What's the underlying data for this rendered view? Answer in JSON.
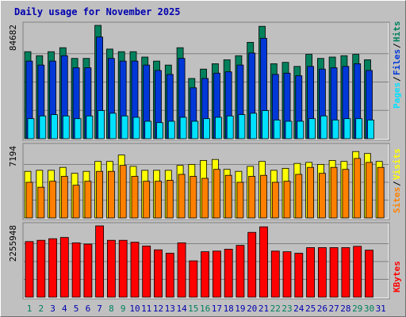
{
  "title": "Daily usage for November 2025",
  "colors": {
    "background": "#c0c0c0",
    "hits": "#00805c",
    "files": "#0038d8",
    "pages": "#00e0ff",
    "visits": "#ffff00",
    "sites": "#ff8000",
    "kbytes": "#ff0000",
    "weekend_label": "#00805c",
    "weekday_label": "#0000b0"
  },
  "chart_data": [
    {
      "type": "bar",
      "panel": "hits-files-pages",
      "categories": [
        "1",
        "2",
        "3",
        "4",
        "5",
        "6",
        "7",
        "8",
        "9",
        "10",
        "11",
        "12",
        "13",
        "14",
        "15",
        "16",
        "17",
        "18",
        "19",
        "20",
        "21",
        "22",
        "23",
        "24",
        "25",
        "26",
        "27",
        "28",
        "29",
        "30",
        "31"
      ],
      "weekend_days": [
        "1",
        "2",
        "8",
        "9",
        "15",
        "16",
        "22",
        "23",
        "29",
        "30"
      ],
      "ylabel_top_tick": "84682",
      "ylim": [
        0,
        84682
      ],
      "legend": [
        "Pages",
        "Files",
        "Hits"
      ],
      "series": [
        {
          "name": "Hits",
          "values": [
            65000,
            62000,
            65000,
            68000,
            60000,
            60000,
            84682,
            67000,
            65000,
            65000,
            61000,
            58000,
            55000,
            68000,
            45000,
            52000,
            56000,
            59000,
            62000,
            72000,
            84000,
            56000,
            57000,
            54000,
            63000,
            60000,
            61000,
            62000,
            63000,
            59000,
            null
          ]
        },
        {
          "name": "Files",
          "values": [
            58000,
            55000,
            58000,
            62000,
            53000,
            53000,
            76000,
            60000,
            58000,
            58000,
            55000,
            51000,
            48000,
            60000,
            38000,
            45000,
            49000,
            50000,
            55000,
            64000,
            75000,
            48000,
            49000,
            47000,
            54000,
            52000,
            53000,
            54000,
            56000,
            51000,
            null
          ]
        },
        {
          "name": "Pages",
          "values": [
            15000,
            17000,
            18000,
            17000,
            15000,
            17000,
            21000,
            19000,
            17000,
            16000,
            13000,
            12000,
            13000,
            16000,
            13000,
            15000,
            16000,
            17000,
            18000,
            19000,
            21000,
            14000,
            13000,
            13000,
            15000,
            17000,
            14000,
            15000,
            15000,
            14000,
            null
          ]
        }
      ]
    },
    {
      "type": "bar",
      "panel": "visits-sites",
      "categories": [
        "1",
        "2",
        "3",
        "4",
        "5",
        "6",
        "7",
        "8",
        "9",
        "10",
        "11",
        "12",
        "13",
        "14",
        "15",
        "16",
        "17",
        "18",
        "19",
        "20",
        "21",
        "22",
        "23",
        "24",
        "25",
        "26",
        "27",
        "28",
        "29",
        "30",
        "31"
      ],
      "ylabel_top_tick": "7194",
      "ylim": [
        0,
        7194
      ],
      "legend": [
        "Sites",
        "Visits"
      ],
      "series": [
        {
          "name": "Visits",
          "values": [
            4700,
            4800,
            4800,
            5100,
            4500,
            4700,
            5700,
            5700,
            6350,
            5200,
            4800,
            4800,
            4800,
            5300,
            5400,
            5800,
            5900,
            4900,
            4700,
            5200,
            5700,
            4800,
            5000,
            5500,
            5600,
            5400,
            5800,
            5700,
            6700,
            6500,
            5700
          ]
        },
        {
          "name": "Sites",
          "values": [
            3600,
            3100,
            3700,
            4200,
            3300,
            3700,
            4700,
            4700,
            5300,
            4200,
            3700,
            3700,
            3800,
            4400,
            4200,
            4000,
            4900,
            4300,
            3600,
            4200,
            4300,
            3600,
            3700,
            4400,
            5100,
            4500,
            5100,
            4900,
            6000,
            5600,
            5100
          ]
        }
      ]
    },
    {
      "type": "bar",
      "panel": "kbytes",
      "categories": [
        "1",
        "2",
        "3",
        "4",
        "5",
        "6",
        "7",
        "8",
        "9",
        "10",
        "11",
        "12",
        "13",
        "14",
        "15",
        "16",
        "17",
        "18",
        "19",
        "20",
        "21",
        "22",
        "23",
        "24",
        "25",
        "26",
        "27",
        "28",
        "29",
        "30",
        "31"
      ],
      "ylabel_top_tick": "2255948",
      "ylim": [
        0,
        2255948
      ],
      "legend": [
        "KBytes"
      ],
      "series": [
        {
          "name": "KBytes",
          "values": [
            1760000,
            1800000,
            1850000,
            1890000,
            1720000,
            1680000,
            2255948,
            1800000,
            1800000,
            1740000,
            1620000,
            1500000,
            1390000,
            1720000,
            1150000,
            1440000,
            1460000,
            1520000,
            1640000,
            2050000,
            2225000,
            1460000,
            1440000,
            1390000,
            1570000,
            1570000,
            1570000,
            1570000,
            1610000,
            1490000,
            null
          ]
        }
      ]
    }
  ]
}
